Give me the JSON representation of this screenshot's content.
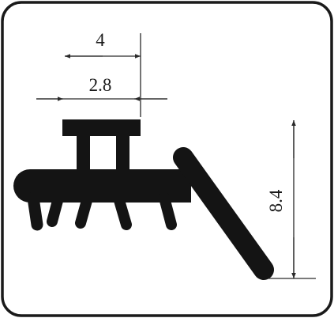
{
  "drawing": {
    "dimensions": {
      "top_width": "4",
      "inner_width": "2.8",
      "height": "8.4"
    },
    "colors": {
      "profile": "#141414",
      "frame": "#1a1a1a",
      "dimension_lines": "#2a2a2a",
      "background": "#ffffff"
    }
  }
}
